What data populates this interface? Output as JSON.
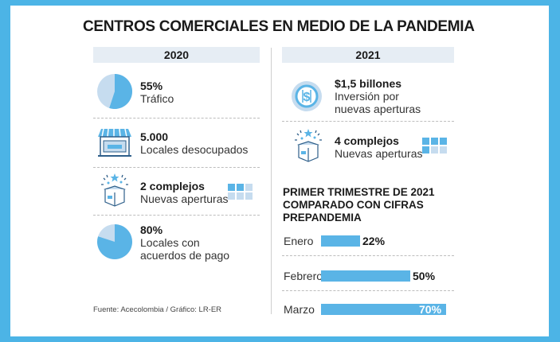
{
  "title": "CENTROS COMERCIALES EN MEDIO DE LA PANDEMIA",
  "colors": {
    "accent": "#5ab4e6",
    "light": "#c6dcef",
    "frame": "#4cb4e6",
    "header_bg": "#e6edf4"
  },
  "left": {
    "year": "2020",
    "items": [
      {
        "icon": "pie-chart-icon",
        "value": "55%",
        "label": "Tráfico",
        "fraction": 0.55
      },
      {
        "icon": "storefront-icon",
        "value": "5.000",
        "label": "Locales desocupados"
      },
      {
        "icon": "opening-box-icon",
        "value": "2 complejos",
        "label": "Nuevas aperturas",
        "squares_filled": 2,
        "squares_total": 6
      },
      {
        "icon": "pie-chart-icon",
        "value": "80%",
        "label_lines": [
          "Locales con",
          "acuerdos de pago"
        ],
        "fraction": 0.8
      }
    ]
  },
  "right": {
    "year": "2021",
    "items": [
      {
        "icon": "dollar-coin-icon",
        "value": "$1,5 billones",
        "label_lines": [
          "Inversión por",
          "nuevas aperturas"
        ]
      },
      {
        "icon": "opening-box-icon",
        "value": "4 complejos",
        "label": "Nuevas aperturas",
        "squares_filled": 4,
        "squares_total": 6
      }
    ]
  },
  "chart_data": {
    "type": "bar",
    "orientation": "horizontal",
    "title_lines": [
      "PRIMER TRIMESTRE DE 2021",
      "COMPARADO CON CIFRAS",
      "PREPANDEMIA"
    ],
    "categories": [
      "Enero",
      "Febrero",
      "Marzo"
    ],
    "values": [
      22,
      50,
      70
    ],
    "value_labels": [
      "22%",
      "50%",
      "70%"
    ],
    "xlim": [
      0,
      70
    ]
  },
  "source": "Fuente: Acecolombia / Gráfico: LR-ER"
}
